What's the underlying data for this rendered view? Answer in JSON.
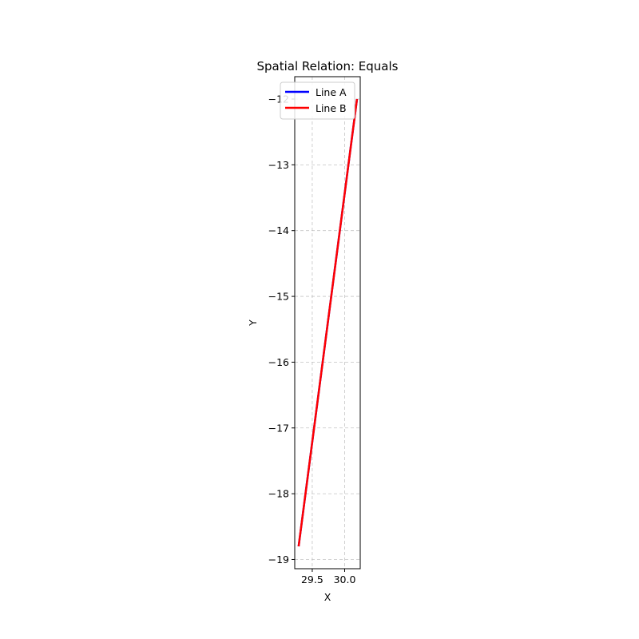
{
  "chart_data": {
    "type": "line",
    "title": "Spatial Relation: Equals",
    "xlabel": "X",
    "ylabel": "Y",
    "xlim": [
      29.23,
      30.24
    ],
    "ylim": [
      -19.14,
      -11.66
    ],
    "xticks": [
      29.5,
      30.0
    ],
    "xtick_labels": [
      "29.5",
      "30.0"
    ],
    "yticks": [
      -19,
      -18,
      -17,
      -16,
      -15,
      -14,
      -13,
      -12
    ],
    "ytick_labels": [
      "−19",
      "−18",
      "−17",
      "−16",
      "−15",
      "−14",
      "−13",
      "−12"
    ],
    "grid": true,
    "legend_position": "top-right",
    "series": [
      {
        "name": "Line A",
        "color": "#0000ff",
        "x": [
          29.29,
          30.19
        ],
        "y": [
          -18.8,
          -12.0
        ]
      },
      {
        "name": "Line B",
        "color": "#ff0000",
        "x": [
          29.29,
          30.19
        ],
        "y": [
          -18.8,
          -12.0
        ]
      }
    ]
  }
}
